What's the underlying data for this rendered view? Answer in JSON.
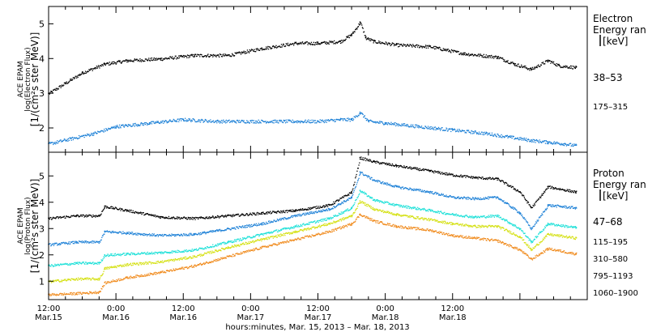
{
  "chart_data": [
    {
      "type": "scatter",
      "panel": "electron",
      "ylabel": [
        "ACE EPAM",
        "log(Electron Flux)",
        "[1/(cm²s ster MeV)]"
      ],
      "yticks": [
        2,
        3,
        4,
        5
      ],
      "ylim": [
        1.3,
        5.5
      ],
      "legend_title": "Electron Energy ranges",
      "legend_title_visible": [
        "Electron",
        "Energy ran"
      ],
      "legend_unit": "[keV]",
      "legend_placement": "right",
      "series": [
        {
          "name": "38–53",
          "color": "#000000",
          "x": [
            0,
            3,
            6,
            10,
            14,
            20,
            26,
            32,
            38,
            44,
            48,
            52,
            54,
            55.5,
            56.5,
            58,
            62,
            68,
            74,
            80,
            83,
            86,
            89,
            91,
            94
          ],
          "y": [
            3.0,
            3.3,
            3.6,
            3.85,
            3.95,
            4.0,
            4.1,
            4.1,
            4.3,
            4.45,
            4.45,
            4.5,
            4.7,
            5.05,
            4.6,
            4.5,
            4.4,
            4.35,
            4.15,
            4.05,
            3.85,
            3.7,
            3.95,
            3.8,
            3.75
          ]
        },
        {
          "name": "175–315",
          "color": "#1a7fd6",
          "x": [
            0,
            4,
            8,
            12,
            18,
            24,
            30,
            36,
            42,
            48,
            52,
            54,
            55.5,
            57,
            60,
            66,
            72,
            78,
            82,
            86,
            89,
            92,
            94
          ],
          "y": [
            1.55,
            1.7,
            1.85,
            2.05,
            2.15,
            2.25,
            2.2,
            2.2,
            2.2,
            2.2,
            2.25,
            2.25,
            2.45,
            2.2,
            2.15,
            2.05,
            1.95,
            1.85,
            1.75,
            1.65,
            1.6,
            1.55,
            1.5
          ]
        }
      ]
    },
    {
      "type": "scatter",
      "panel": "proton",
      "ylabel": [
        "ACE EPAM",
        "log(Proton Flux)",
        "[1/(cm²s ster MeV)]"
      ],
      "yticks": [
        1,
        2,
        3,
        4,
        5
      ],
      "ylim": [
        0.3,
        5.9
      ],
      "legend_title": "Proton Energy ranges",
      "legend_title_visible": [
        "Proton",
        "Energy ran"
      ],
      "legend_unit": "[keV]",
      "legend_placement": "right",
      "series": [
        {
          "name": "47–68",
          "color": "#000000",
          "x": [
            0,
            5,
            9,
            10,
            14,
            20,
            26,
            32,
            38,
            44,
            50,
            54,
            55.5,
            58,
            62,
            68,
            72,
            76,
            80,
            84,
            86,
            89,
            94
          ],
          "y": [
            3.4,
            3.5,
            3.5,
            3.85,
            3.7,
            3.45,
            3.4,
            3.5,
            3.6,
            3.7,
            3.9,
            4.4,
            5.7,
            5.55,
            5.4,
            5.2,
            5.05,
            4.95,
            4.9,
            4.4,
            3.8,
            4.6,
            4.4
          ]
        },
        {
          "name": "115–195",
          "color": "#1a7fd6",
          "x": [
            0,
            5,
            9,
            10,
            14,
            20,
            26,
            32,
            38,
            44,
            50,
            54,
            55.5,
            58,
            62,
            68,
            72,
            76,
            80,
            84,
            86,
            89,
            94
          ],
          "y": [
            2.4,
            2.5,
            2.5,
            2.9,
            2.85,
            2.75,
            2.8,
            3.0,
            3.2,
            3.5,
            3.75,
            4.2,
            5.15,
            4.85,
            4.6,
            4.4,
            4.2,
            4.15,
            4.2,
            3.6,
            3.0,
            3.9,
            3.8
          ]
        },
        {
          "name": "310–580",
          "color": "#1ce0d8",
          "x": [
            0,
            5,
            9,
            10,
            14,
            20,
            26,
            32,
            38,
            44,
            50,
            54,
            55.5,
            58,
            62,
            68,
            72,
            76,
            80,
            84,
            86,
            89,
            94
          ],
          "y": [
            1.6,
            1.7,
            1.7,
            2.0,
            2.05,
            2.1,
            2.2,
            2.5,
            2.8,
            3.1,
            3.4,
            3.8,
            4.45,
            4.1,
            3.9,
            3.7,
            3.55,
            3.45,
            3.5,
            3.0,
            2.5,
            3.2,
            3.05
          ]
        },
        {
          "name": "795–1193",
          "color": "#d4e010",
          "x": [
            0,
            5,
            9,
            10,
            14,
            20,
            26,
            32,
            38,
            44,
            50,
            54,
            55.5,
            58,
            62,
            68,
            72,
            76,
            80,
            84,
            86,
            89,
            94
          ],
          "y": [
            1.0,
            1.1,
            1.1,
            1.5,
            1.65,
            1.75,
            1.95,
            2.3,
            2.6,
            2.9,
            3.2,
            3.5,
            4.05,
            3.75,
            3.55,
            3.35,
            3.2,
            3.1,
            3.1,
            2.7,
            2.2,
            2.8,
            2.65
          ]
        },
        {
          "name": "1060–1900",
          "color": "#f08a1c",
          "x": [
            0,
            5,
            9,
            10,
            14,
            20,
            26,
            32,
            38,
            44,
            50,
            54,
            55.5,
            58,
            62,
            68,
            72,
            76,
            80,
            84,
            86,
            89,
            94
          ],
          "y": [
            0.5,
            0.55,
            0.6,
            0.95,
            1.15,
            1.35,
            1.6,
            1.95,
            2.3,
            2.6,
            2.9,
            3.2,
            3.55,
            3.3,
            3.1,
            2.95,
            2.75,
            2.65,
            2.55,
            2.2,
            1.85,
            2.25,
            2.05
          ]
        }
      ]
    }
  ],
  "x_axis": {
    "xlim": [
      0,
      96
    ],
    "ticks": [
      {
        "hour": 0,
        "time": "12:00",
        "date": "Mar.15"
      },
      {
        "hour": 12,
        "time": "0:00",
        "date": "Mar.16"
      },
      {
        "hour": 24,
        "time": "12:00",
        "date": "Mar.16"
      },
      {
        "hour": 36,
        "time": "0:00",
        "date": "Mar.17"
      },
      {
        "hour": 48,
        "time": "12:00",
        "date": "Mar.17"
      },
      {
        "hour": 60,
        "time": "0:00",
        "date": "Mar.18"
      },
      {
        "hour": 72,
        "time": "12:00",
        "date": "Mar.18"
      }
    ],
    "label": "hours:minutes, Mar. 15, 2013 – Mar. 18, 2013"
  },
  "colors": {
    "black": "#000000",
    "blue": "#1a7fd6",
    "cyan": "#1ce0d8",
    "yellow": "#d4e010",
    "orange": "#f08a1c"
  }
}
